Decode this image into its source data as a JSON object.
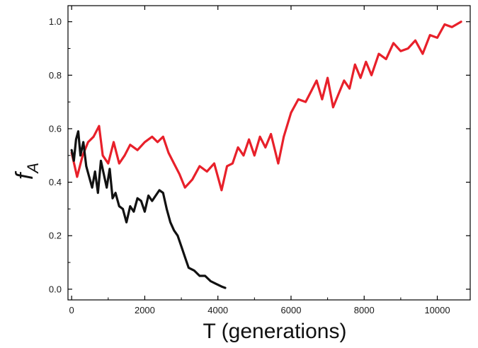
{
  "chart_data": {
    "type": "line",
    "title": "",
    "xlabel": "T (generations)",
    "ylabel": {
      "main": "f",
      "subscript": "A"
    },
    "xlim": [
      -100,
      10900
    ],
    "ylim": [
      -0.04,
      1.06
    ],
    "xticks": [
      0,
      2000,
      4000,
      6000,
      8000,
      10000
    ],
    "xtick_labels": [
      "0",
      "2000",
      "4000",
      "6000",
      "8000",
      "10000"
    ],
    "yticks": [
      0.0,
      0.2,
      0.4,
      0.6,
      0.8,
      1.0
    ],
    "ytick_labels": [
      "0.0",
      "0.2",
      "0.4",
      "0.6",
      "0.8",
      "1.0"
    ],
    "grid": false,
    "legend": "none",
    "series": [
      {
        "color": "#e8202a",
        "x": [
          0,
          150,
          300,
          450,
          600,
          750,
          850,
          1000,
          1150,
          1300,
          1450,
          1600,
          1800,
          2000,
          2200,
          2350,
          2500,
          2650,
          2800,
          2950,
          3100,
          3300,
          3500,
          3700,
          3900,
          4100,
          4250,
          4400,
          4550,
          4700,
          4850,
          5000,
          5150,
          5300,
          5450,
          5650,
          5800,
          6000,
          6200,
          6400,
          6550,
          6700,
          6850,
          7000,
          7150,
          7300,
          7450,
          7600,
          7750,
          7900,
          8050,
          8200,
          8400,
          8600,
          8800,
          9000,
          9200,
          9400,
          9600,
          9800,
          10000,
          10200,
          10400,
          10650
        ],
        "values": [
          0.51,
          0.42,
          0.5,
          0.55,
          0.57,
          0.61,
          0.5,
          0.47,
          0.55,
          0.47,
          0.5,
          0.54,
          0.52,
          0.55,
          0.57,
          0.55,
          0.57,
          0.51,
          0.47,
          0.43,
          0.38,
          0.41,
          0.46,
          0.44,
          0.47,
          0.37,
          0.46,
          0.47,
          0.53,
          0.5,
          0.56,
          0.5,
          0.57,
          0.53,
          0.58,
          0.47,
          0.57,
          0.66,
          0.71,
          0.7,
          0.74,
          0.78,
          0.71,
          0.79,
          0.68,
          0.73,
          0.78,
          0.75,
          0.84,
          0.79,
          0.85,
          0.8,
          0.88,
          0.86,
          0.92,
          0.89,
          0.9,
          0.93,
          0.88,
          0.95,
          0.94,
          0.99,
          0.98,
          1.0
        ]
      },
      {
        "color": "#111111",
        "x": [
          0,
          60,
          120,
          180,
          240,
          320,
          400,
          480,
          560,
          640,
          720,
          800,
          880,
          960,
          1040,
          1120,
          1200,
          1300,
          1400,
          1500,
          1600,
          1700,
          1800,
          1900,
          2000,
          2100,
          2200,
          2300,
          2400,
          2500,
          2600,
          2700,
          2800,
          2900,
          3000,
          3100,
          3200,
          3350,
          3500,
          3650,
          3800,
          3950,
          4100,
          4200
        ],
        "values": [
          0.52,
          0.48,
          0.56,
          0.59,
          0.5,
          0.55,
          0.46,
          0.42,
          0.38,
          0.44,
          0.36,
          0.48,
          0.43,
          0.38,
          0.45,
          0.34,
          0.36,
          0.31,
          0.3,
          0.25,
          0.31,
          0.29,
          0.34,
          0.33,
          0.29,
          0.35,
          0.33,
          0.35,
          0.37,
          0.36,
          0.3,
          0.25,
          0.22,
          0.2,
          0.16,
          0.12,
          0.08,
          0.07,
          0.05,
          0.05,
          0.03,
          0.02,
          0.01,
          0.005
        ]
      }
    ]
  }
}
